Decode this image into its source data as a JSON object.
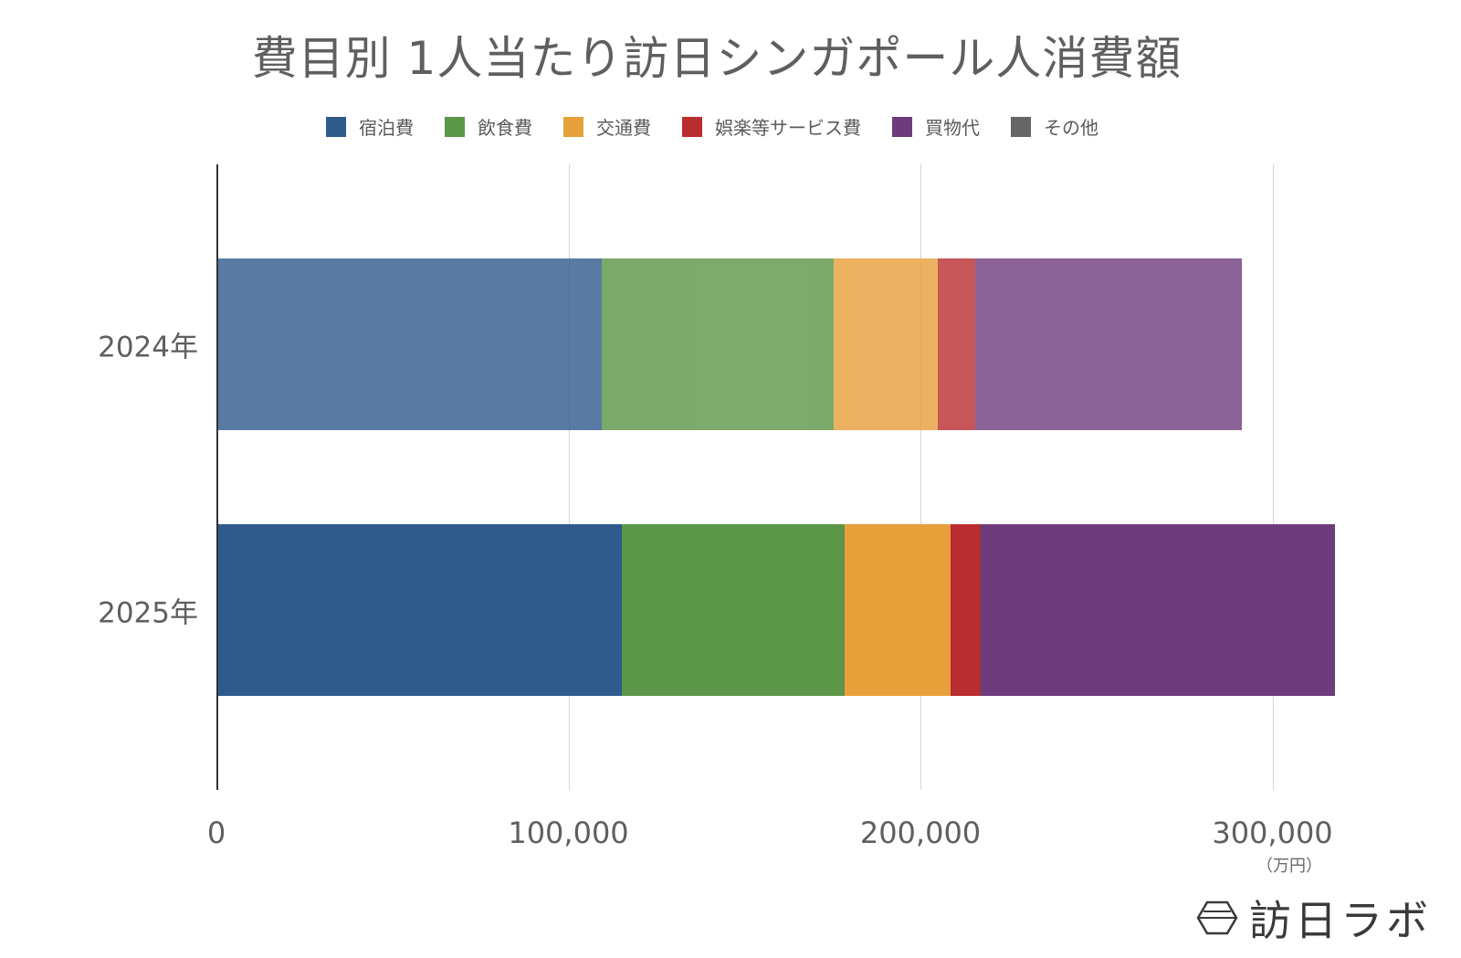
{
  "title": "費目別 1人当たり訪日シンガポール人消費額",
  "legend": [
    {
      "label": "宿泊費",
      "color": "#2f5a8c"
    },
    {
      "label": "飲食費",
      "color": "#5c9648"
    },
    {
      "label": "交通費",
      "color": "#e8a03a"
    },
    {
      "label": "娯楽等サービス費",
      "color": "#b92c2f"
    },
    {
      "label": "買物代",
      "color": "#6e3c7c"
    },
    {
      "label": "その他",
      "color": "#666666"
    }
  ],
  "axis": {
    "ticks": [
      "0",
      "100,000",
      "200,000",
      "300,000"
    ],
    "unit": "（万円）"
  },
  "categories": [
    "2024年",
    "2025年"
  ],
  "brand": {
    "name": "訪日ラボ"
  },
  "chart_data": {
    "type": "bar",
    "orientation": "horizontal",
    "stacked": true,
    "title": "費目別 1人当たり訪日シンガポール人消費額",
    "categories": [
      "2024年",
      "2025年"
    ],
    "series": [
      {
        "name": "宿泊費",
        "color": "#2f5a8c",
        "values": [
          109500,
          115200
        ]
      },
      {
        "name": "飲食費",
        "color": "#5c9648",
        "values": [
          65900,
          63300
        ]
      },
      {
        "name": "交通費",
        "color": "#e8a03a",
        "values": [
          29600,
          30100
        ]
      },
      {
        "name": "娯楽等サービス費",
        "color": "#b92c2f",
        "values": [
          10600,
          8500
        ]
      },
      {
        "name": "買物代",
        "color": "#6e3c7c",
        "values": [
          75700,
          100700
        ]
      },
      {
        "name": "その他",
        "color": "#666666",
        "values": [
          0,
          0
        ]
      }
    ],
    "totals": [
      291300,
      317800
    ],
    "xlabel": "（万円）",
    "ylabel": "",
    "xlim": [
      0,
      320000
    ],
    "xticks": [
      0,
      100000,
      200000,
      300000
    ],
    "grid": true,
    "legend_position": "top",
    "note": "2024年 bar rendered with reduced opacity (lighter tone)"
  }
}
